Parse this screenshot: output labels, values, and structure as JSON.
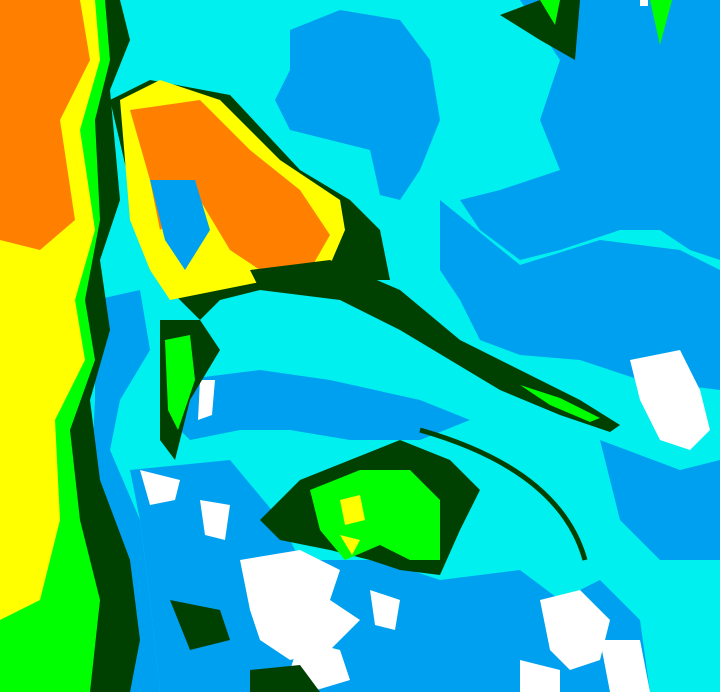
{
  "image": {
    "kind": "false-color satellite image",
    "palette": {
      "background": "#00f0f0",
      "blue": "#00a0f0",
      "white": "#ffffff",
      "dark_green": "#004000",
      "green": "#00ff00",
      "yellow": "#ffff00",
      "orange": "#ff8000"
    }
  }
}
